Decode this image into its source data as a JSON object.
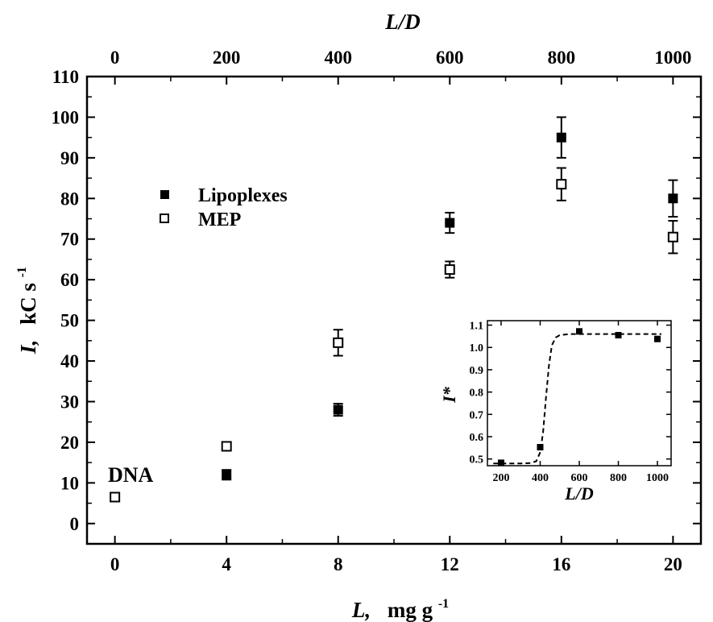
{
  "chart_data": [
    {
      "type": "scatter",
      "x_label_main": "L,",
      "x_label_units": "mg g",
      "x_label_sup": "-1",
      "y_label_main": "I,",
      "y_label_units": "kC s",
      "y_label_sup": "-1",
      "top_axis_label": "L/D",
      "xlim": [
        -1,
        21
      ],
      "ylim": [
        -5,
        110
      ],
      "x_ticks": [
        0,
        4,
        8,
        12,
        16,
        20
      ],
      "x_tick_labels": [
        "0",
        "4",
        "8",
        "12",
        "16",
        "20"
      ],
      "y_ticks": [
        0,
        10,
        20,
        30,
        40,
        50,
        60,
        70,
        80,
        90,
        100,
        110
      ],
      "y_tick_labels": [
        "0",
        "10",
        "20",
        "30",
        "40",
        "50",
        "60",
        "70",
        "80",
        "90",
        "100",
        "110"
      ],
      "top_ticks": [
        0,
        4,
        8,
        12,
        16,
        20
      ],
      "top_tick_labels": [
        "0",
        "200",
        "400",
        "600",
        "800",
        "1000"
      ],
      "annotation": "DNA",
      "legend_position": "upper-left",
      "series": [
        {
          "name": "Lipoplexes",
          "marker": "filled-square",
          "x": [
            0,
            4,
            8,
            12,
            16,
            20
          ],
          "y": [
            6.5,
            12,
            28,
            74,
            95,
            80
          ],
          "err": [
            0.8,
            1.2,
            1.5,
            2.5,
            5,
            4.5
          ]
        },
        {
          "name": "MEP",
          "marker": "open-square",
          "x": [
            0,
            4,
            8,
            12,
            16,
            20
          ],
          "y": [
            6.5,
            19,
            44.5,
            62.5,
            83.5,
            70.5
          ],
          "err": [
            0.8,
            0.8,
            3.2,
            2,
            4,
            4
          ]
        }
      ]
    },
    {
      "type": "scatter",
      "inset": true,
      "xlabel": "L/D",
      "ylabel": "I*",
      "xlim": [
        130,
        1070
      ],
      "ylim": [
        0.47,
        1.12
      ],
      "x_ticks": [
        200,
        400,
        600,
        800,
        1000
      ],
      "x_tick_labels": [
        "200",
        "400",
        "600",
        "800",
        "1000"
      ],
      "y_ticks": [
        0.5,
        0.6,
        0.7,
        0.8,
        0.9,
        1.0,
        1.1
      ],
      "y_tick_labels": [
        "0.5",
        "0.6",
        "0.7",
        "0.8",
        "0.9",
        "1.0",
        "1.1"
      ],
      "points": {
        "x": [
          200,
          400,
          600,
          800,
          1000
        ],
        "y": [
          0.483,
          0.553,
          1.072,
          1.055,
          1.038
        ]
      },
      "fit_curve": {
        "style": "dashed",
        "x": [
          160,
          200,
          250,
          300,
          350,
          380,
          400,
          415,
          430,
          445,
          460,
          480,
          500,
          550,
          600,
          700,
          800,
          900,
          1000,
          1020
        ],
        "y": [
          0.48,
          0.48,
          0.48,
          0.48,
          0.482,
          0.49,
          0.53,
          0.62,
          0.78,
          0.92,
          1.01,
          1.045,
          1.055,
          1.06,
          1.06,
          1.06,
          1.06,
          1.06,
          1.06,
          1.06
        ]
      }
    }
  ]
}
